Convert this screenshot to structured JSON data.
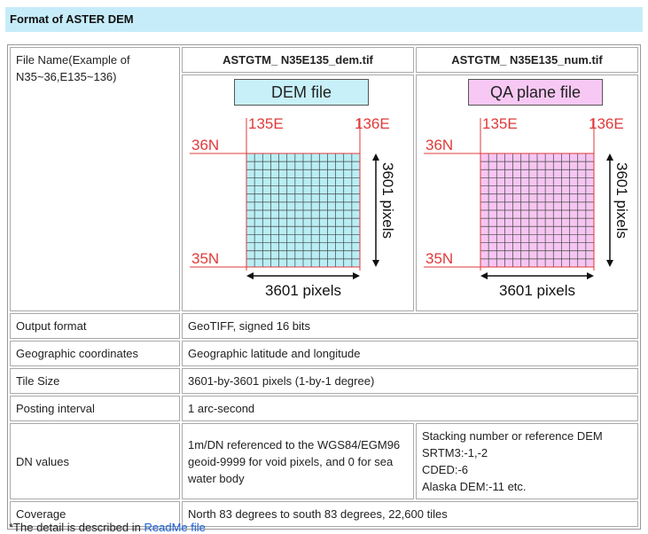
{
  "title": "Format of ASTER DEM",
  "file_name": {
    "label": "File Name(Example of N35~36,E135~136)",
    "dem_file": "ASTGTM_ N35E135_dem.tif",
    "num_file": "ASTGTM_ N35E135_num.tif"
  },
  "figures": {
    "dem": {
      "box_label": "DEM file",
      "lon_left": "135E",
      "lon_right": "136E",
      "lat_top": "36N",
      "lat_bottom": "35N",
      "height_label": "3601 pixels",
      "width_label": "3601 pixels",
      "fill": "#b9eef5",
      "line": "#e03a3a"
    },
    "qa": {
      "box_label": "QA plane file",
      "lon_left": "135E",
      "lon_right": "136E",
      "lat_top": "36N",
      "lat_bottom": "35N",
      "height_label": "3601 pixels",
      "width_label": "3601 pixels",
      "fill": "#f6c6f2",
      "line": "#e03a3a"
    }
  },
  "rows": {
    "output_format": {
      "label": "Output format",
      "value": "GeoTIFF, signed 16 bits"
    },
    "geo_coords": {
      "label": "Geographic coordinates",
      "value": "Geographic latitude and longitude"
    },
    "tile_size": {
      "label": "Tile Size",
      "value": "3601-by-3601 pixels (1-by-1 degree)"
    },
    "posting": {
      "label": "Posting interval",
      "value": "1 arc-second"
    },
    "dn_values": {
      "label": "DN values",
      "value_dem": "1m/DN referenced to the WGS84/EGM96 geoid-9999 for void pixels, and 0 for sea water body",
      "value_qa_lines": [
        "Stacking number or reference DEM",
        "SRTM3:-1,-2",
        "CDED:-6",
        "Alaska DEM:-11 etc."
      ]
    },
    "coverage": {
      "label": "Coverage",
      "value": "North 83 degrees to south 83 degrees, 22,600 tiles"
    }
  },
  "footnote": {
    "text": "*The detail is described in ",
    "link": "ReadMe file"
  }
}
